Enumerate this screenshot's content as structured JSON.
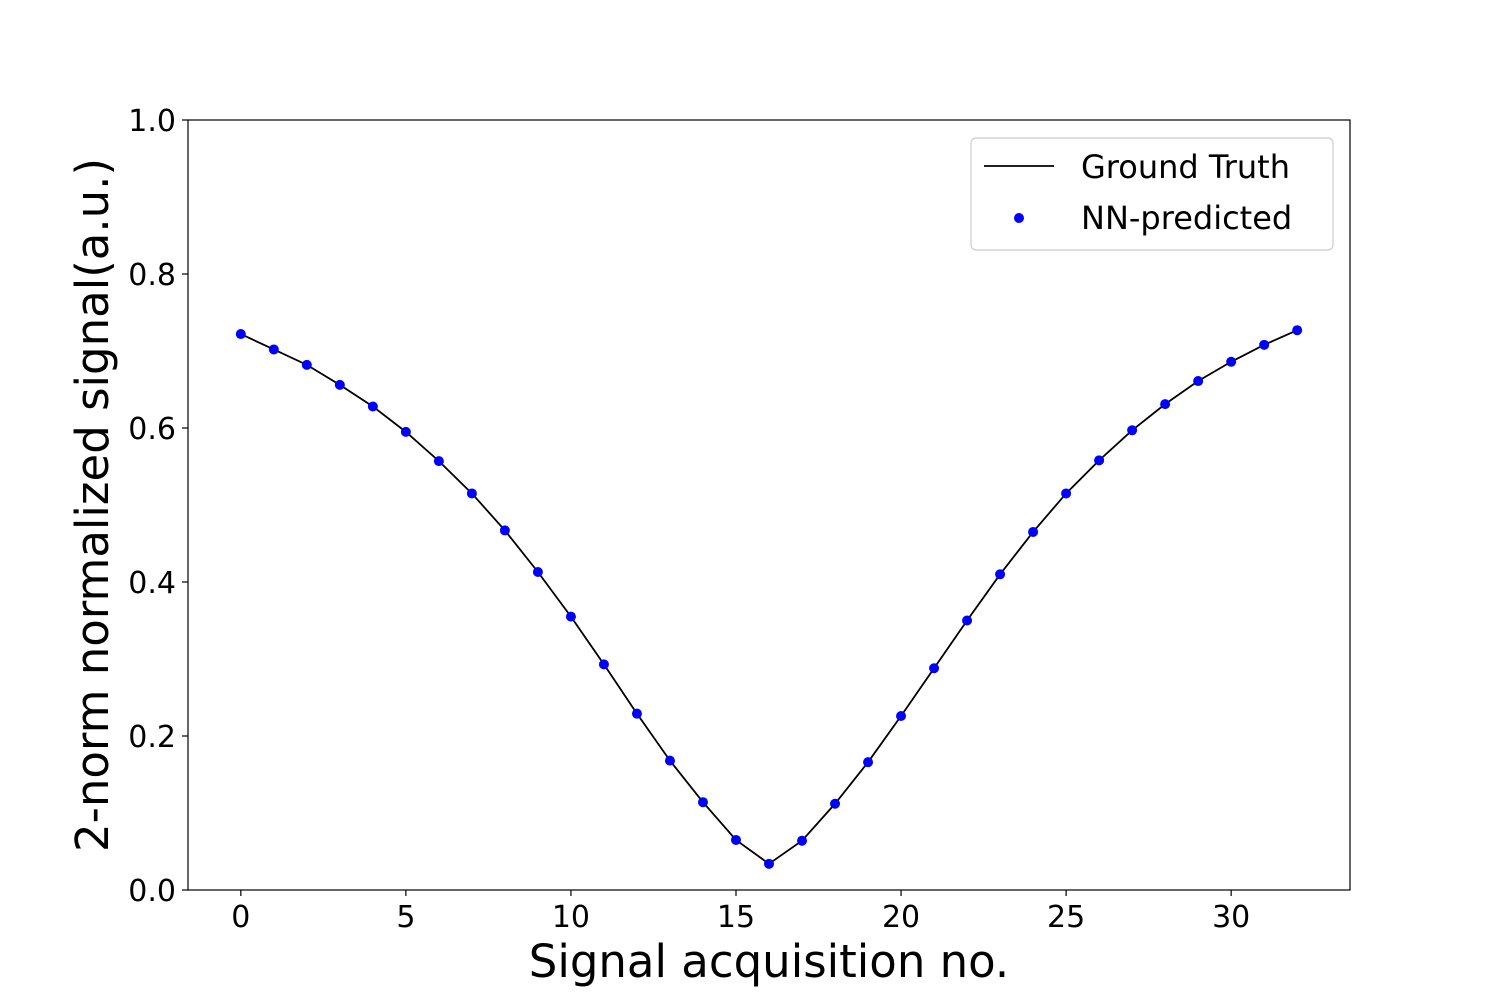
{
  "chart_data": {
    "type": "line",
    "title": "",
    "xlabel": "Signal acquisition no.",
    "ylabel": "2-norm normalized signal(a.u.)",
    "xlim": [
      -1.6,
      33.6
    ],
    "ylim": [
      0.0,
      1.0
    ],
    "xticks": [
      0,
      5,
      10,
      15,
      20,
      25,
      30
    ],
    "yticks": [
      0.0,
      0.2,
      0.4,
      0.6,
      0.8,
      1.0
    ],
    "xtick_labels": [
      "0",
      "5",
      "10",
      "15",
      "20",
      "25",
      "30"
    ],
    "ytick_labels": [
      "0.0",
      "0.2",
      "0.4",
      "0.6",
      "0.8",
      "1.0"
    ],
    "grid": false,
    "legend_position": "top-right",
    "x": [
      0,
      1,
      2,
      3,
      4,
      5,
      6,
      7,
      8,
      9,
      10,
      11,
      12,
      13,
      14,
      15,
      16,
      17,
      18,
      19,
      20,
      21,
      22,
      23,
      24,
      25,
      26,
      27,
      28,
      29,
      30,
      31,
      32
    ],
    "series": [
      {
        "name": "Ground Truth",
        "style": "line",
        "color": "#000000",
        "values": [
          0.722,
          0.702,
          0.682,
          0.656,
          0.628,
          0.595,
          0.557,
          0.515,
          0.467,
          0.413,
          0.355,
          0.293,
          0.229,
          0.168,
          0.114,
          0.065,
          0.034,
          0.064,
          0.112,
          0.166,
          0.226,
          0.288,
          0.35,
          0.41,
          0.465,
          0.515,
          0.558,
          0.597,
          0.631,
          0.661,
          0.686,
          0.708,
          0.727
        ]
      },
      {
        "name": "NN-predicted",
        "style": "markers",
        "color": "#0000ff",
        "values": [
          0.722,
          0.702,
          0.682,
          0.656,
          0.628,
          0.595,
          0.557,
          0.515,
          0.467,
          0.413,
          0.355,
          0.293,
          0.229,
          0.168,
          0.114,
          0.065,
          0.034,
          0.064,
          0.112,
          0.166,
          0.226,
          0.288,
          0.35,
          0.41,
          0.465,
          0.515,
          0.558,
          0.597,
          0.631,
          0.661,
          0.686,
          0.708,
          0.727
        ]
      }
    ]
  }
}
